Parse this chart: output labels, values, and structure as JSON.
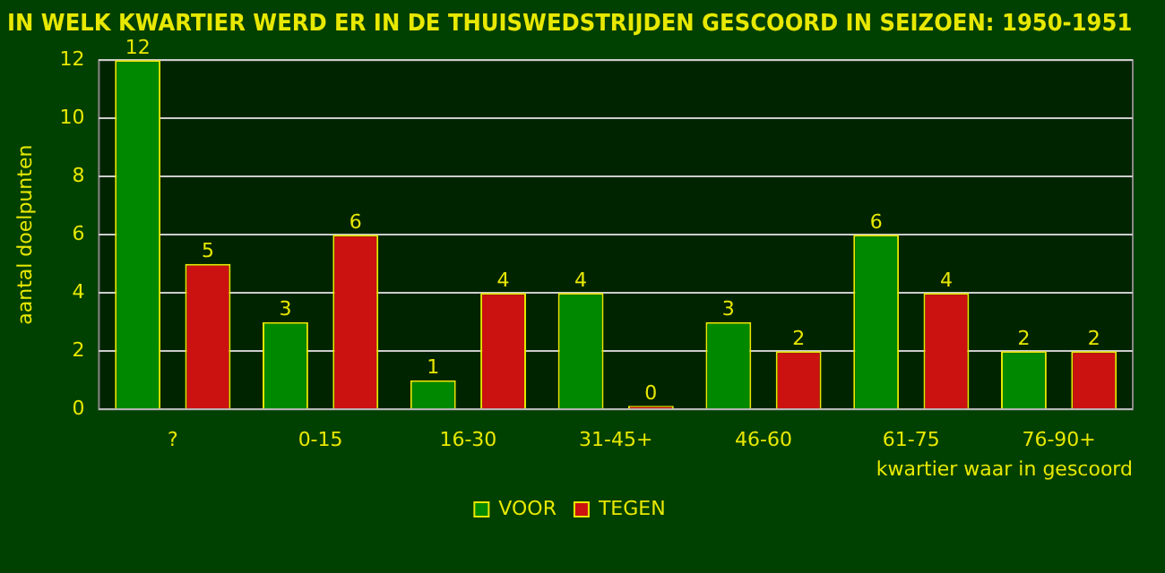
{
  "chart_data": {
    "type": "bar",
    "title": "IN WELK KWARTIER WERD ER IN DE THUISWEDSTRIJDEN GESCOORD IN SEIZOEN: 1950-1951",
    "xlabel": "kwartier waar in gescoord",
    "ylabel": "aantal doelpunten",
    "categories": [
      "?",
      "0-15",
      "16-30",
      "31-45+",
      "46-60",
      "61-75",
      "76-90+"
    ],
    "series": [
      {
        "name": "VOOR",
        "color": "#008800",
        "values": [
          12,
          3,
          1,
          4,
          3,
          6,
          2
        ]
      },
      {
        "name": "TEGEN",
        "color": "#cc1111",
        "values": [
          5,
          6,
          4,
          0,
          2,
          4,
          2
        ]
      }
    ],
    "ylim": [
      0,
      12
    ],
    "yticks": [
      0,
      2,
      4,
      6,
      8,
      10,
      12
    ],
    "grid": "y",
    "legend": "bottom",
    "data_labels": true
  }
}
